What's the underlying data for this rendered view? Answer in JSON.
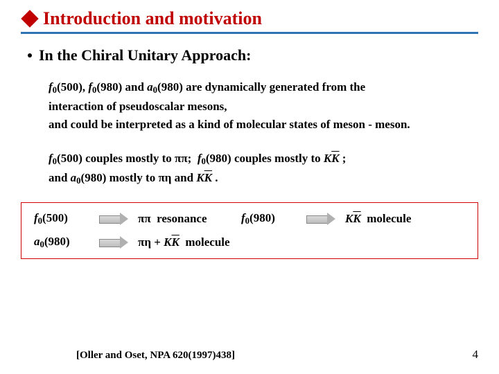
{
  "title": "Introduction and motivation",
  "sub": "In the Chiral Unitary Approach:",
  "block1_l1": "f₀(500), f₀(980) and a₀(980) are dynamically generated from the",
  "block1_l2": "interaction of pseudoscalar mesons,",
  "block1_l3": "and could be interpreted as a kind of molecular states of meson - meson.",
  "block2_l1a": "f₀(500) couples mostly to ππ;  f₀(980) couples mostly to ",
  "block2_l1b": "K",
  "block2_l1c": "K ;",
  "block2_l2a": "and a₀(980) mostly to πη and ",
  "block2_l2b": "K",
  "block2_l2c": "K .",
  "box_r1_f": "f₀(500)",
  "box_r1_mid": "ππ  resonance",
  "box_r1_f2": "f₀(980)",
  "box_r1_end_a": "K",
  "box_r1_end_b": "K  molecule",
  "box_r2_f": "a₀(980)",
  "box_r2_mid_a": "πη + ",
  "box_r2_mid_b": "K",
  "box_r2_mid_c": "K  molecule",
  "ref": "[Oller and Oset,  NPA 620(1997)438]",
  "pagenum": "4",
  "colors": {
    "title": "#c00000",
    "underline": "#2e74b5",
    "box_border": "#d00000"
  }
}
